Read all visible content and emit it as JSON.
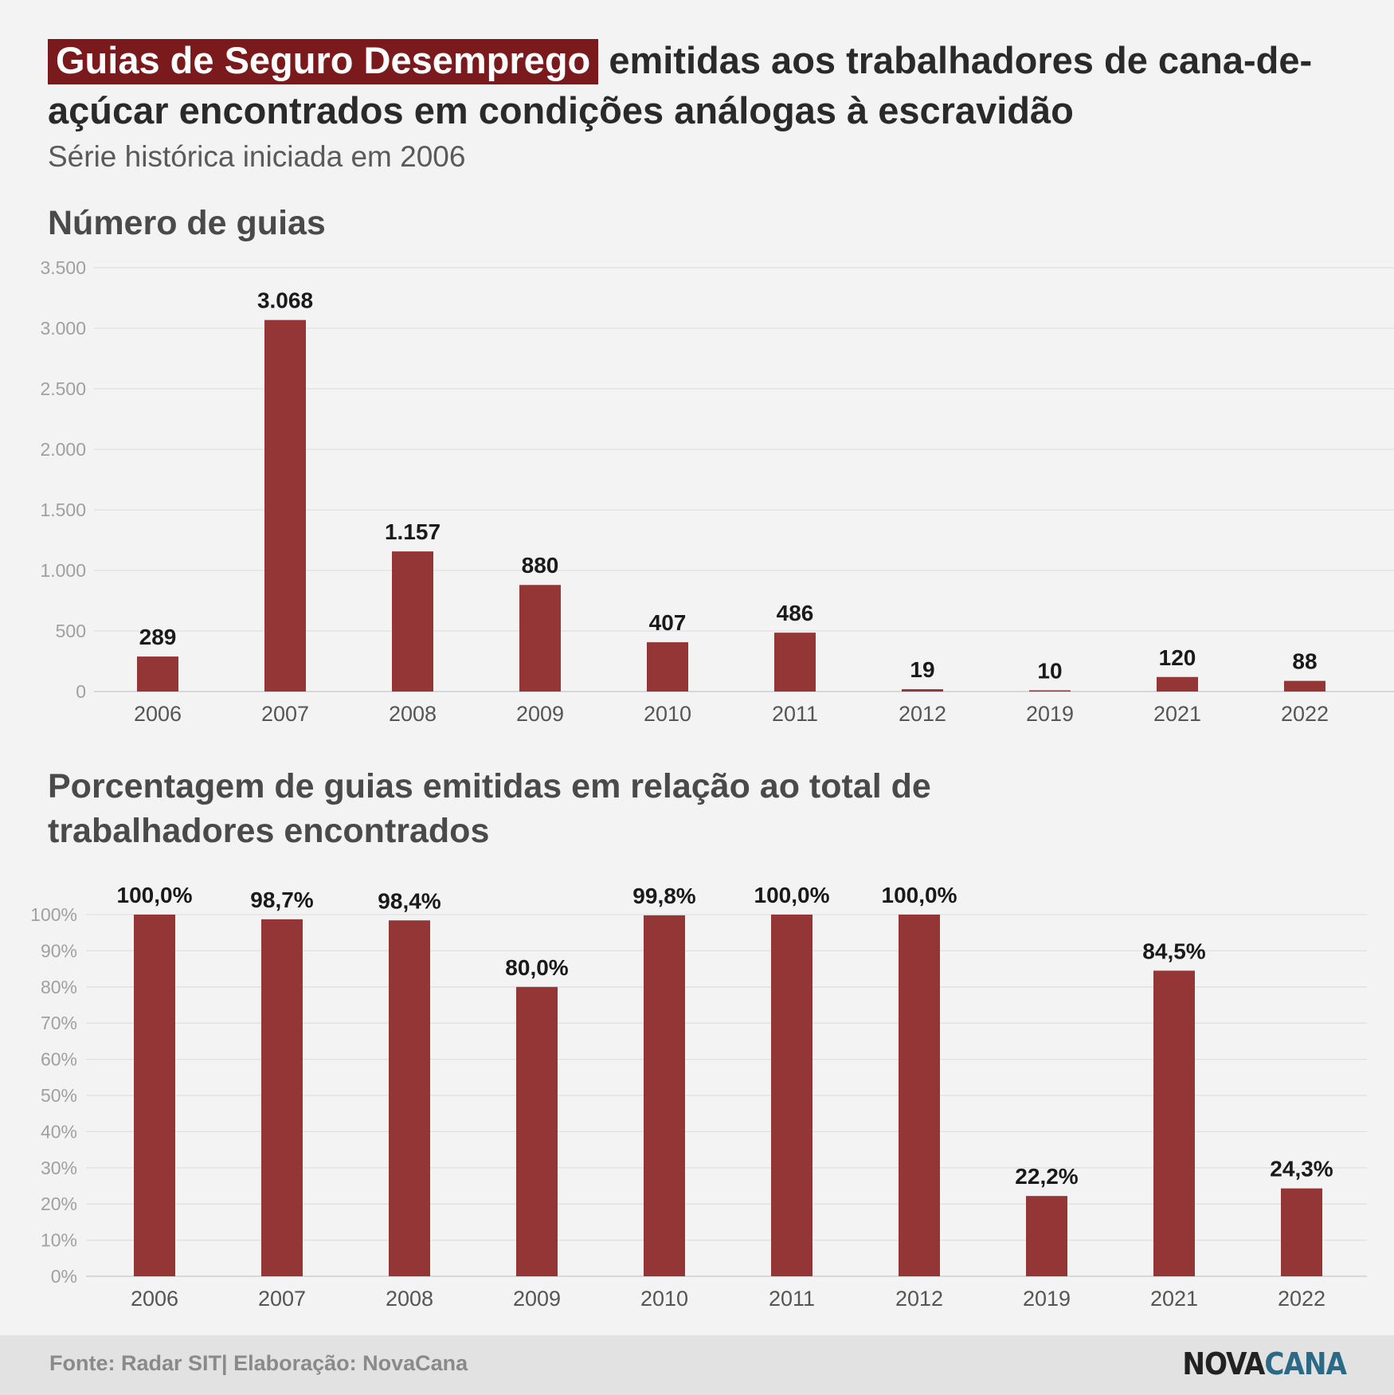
{
  "title": {
    "highlight": "Guias de Seguro Desemprego",
    "rest": "emitidas aos trabalhadores de cana-de-açúcar encontrados em condições análogas à escravidão"
  },
  "subtitle": "Série histórica iniciada em 2006",
  "section1_title": "Número de guias",
  "section2_title": "Porcentagem de guias emitidas em relação ao total de trabalhadores encontrados",
  "colors": {
    "bar": "#943536",
    "highlight_bg": "#7a1a1c",
    "logo_accent": "#2a6a86"
  },
  "chart_data": [
    {
      "type": "bar",
      "title": "Número de guias",
      "categories": [
        "2006",
        "2007",
        "2008",
        "2009",
        "2010",
        "2011",
        "2012",
        "2019",
        "2021",
        "2022"
      ],
      "values": [
        289,
        3068,
        1157,
        880,
        407,
        486,
        19,
        10,
        120,
        88
      ],
      "value_labels": [
        "289",
        "3.068",
        "1.157",
        "880",
        "407",
        "486",
        "19",
        "10",
        "120",
        "88"
      ],
      "ylim": [
        0,
        3500
      ],
      "yticks": [
        0,
        500,
        1000,
        1500,
        2000,
        2500,
        3000,
        3500
      ],
      "ytick_labels": [
        "0",
        "500",
        "1.000",
        "1.500",
        "2.000",
        "2.500",
        "3.000",
        "3.500"
      ],
      "grid": true
    },
    {
      "type": "bar",
      "title": "Porcentagem de guias emitidas em relação ao total de trabalhadores encontrados",
      "categories": [
        "2006",
        "2007",
        "2008",
        "2009",
        "2010",
        "2011",
        "2012",
        "2019",
        "2021",
        "2022"
      ],
      "values": [
        100.0,
        98.7,
        98.4,
        80.0,
        99.8,
        100.0,
        100.0,
        22.2,
        84.5,
        24.3
      ],
      "value_labels": [
        "100,0%",
        "98,7%",
        "98,4%",
        "80,0%",
        "99,8%",
        "100,0%",
        "100,0%",
        "22,2%",
        "84,5%",
        "24,3%"
      ],
      "ylim": [
        0,
        100
      ],
      "yticks": [
        0,
        10,
        20,
        30,
        40,
        50,
        60,
        70,
        80,
        90,
        100
      ],
      "ytick_labels": [
        "0%",
        "10%",
        "20%",
        "30%",
        "40%",
        "50%",
        "60%",
        "70%",
        "80%",
        "90%",
        "100%"
      ],
      "grid": true
    }
  ],
  "footer": {
    "source": "Fonte: Radar SIT| Elaboração: NovaCana",
    "logo_part1": "NOVA",
    "logo_part2": "CANA"
  }
}
